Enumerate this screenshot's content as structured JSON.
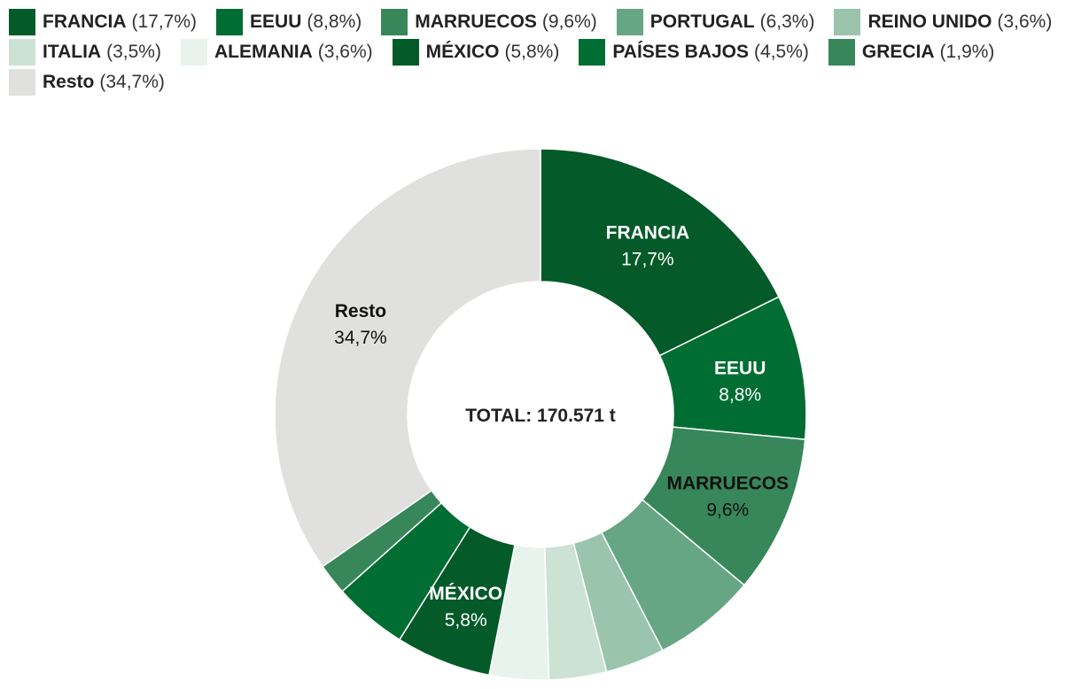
{
  "chart_data": {
    "type": "donut",
    "center_text": "TOTAL: 170.571 t",
    "slices": [
      {
        "name": "FRANCIA",
        "value": 17.7,
        "label": "17,7%",
        "color": "#045a29",
        "label_color": "#ffffff",
        "show_label": true
      },
      {
        "name": "EEUU",
        "value": 8.8,
        "label": "8,8%",
        "color": "#006d33",
        "label_color": "#ffffff",
        "show_label": true
      },
      {
        "name": "MARRUECOS",
        "value": 9.6,
        "label": "9,6%",
        "color": "#37875a",
        "label_color": "#111111",
        "show_label": true
      },
      {
        "name": "PORTUGAL",
        "value": 6.3,
        "label": "6,3%",
        "color": "#67a684",
        "label_color": "#111111",
        "show_label": false
      },
      {
        "name": "REINO UNIDO",
        "value": 3.6,
        "label": "3,6%",
        "color": "#9ac4ac",
        "label_color": "#111111",
        "show_label": false
      },
      {
        "name": "ITALIA",
        "value": 3.5,
        "label": "3,5%",
        "color": "#cbe2d5",
        "label_color": "#111111",
        "show_label": false
      },
      {
        "name": "ALEMANIA",
        "value": 3.6,
        "label": "3,6%",
        "color": "#e9f3ee",
        "label_color": "#111111",
        "show_label": false
      },
      {
        "name": "MÉXICO",
        "value": 5.8,
        "label": "5,8%",
        "color": "#045a29",
        "label_color": "#ffffff",
        "show_label": true
      },
      {
        "name": "PAÍSES BAJOS",
        "value": 4.5,
        "label": "4,5%",
        "color": "#006d33",
        "label_color": "#ffffff",
        "show_label": false
      },
      {
        "name": "GRECIA",
        "value": 1.9,
        "label": "1,9%",
        "color": "#37875a",
        "label_color": "#111111",
        "show_label": false
      },
      {
        "name": "Resto",
        "value": 34.7,
        "label": "34,7%",
        "color": "#e0e0df",
        "label_color": "#111111",
        "show_label": true
      }
    ]
  }
}
